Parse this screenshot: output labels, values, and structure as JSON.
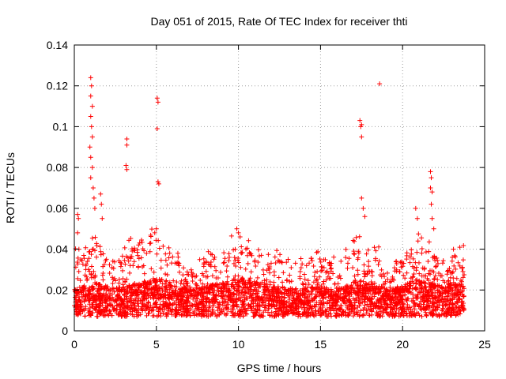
{
  "chart_data": {
    "type": "scatter",
    "title": "Day 051 of 2015, Rate Of TEC Index for receiver thti",
    "xlabel": "GPS time / hours",
    "ylabel": "ROTI / TECUs",
    "xlim": [
      0,
      25
    ],
    "ylim": [
      0,
      0.14
    ],
    "xticks": [
      0,
      5,
      10,
      15,
      20,
      25
    ],
    "xtick_labels": [
      "0",
      "5",
      "10",
      "15",
      "20",
      "25"
    ],
    "yticks": [
      0,
      0.02,
      0.04,
      0.06,
      0.08,
      0.1,
      0.12,
      0.14
    ],
    "ytick_labels": [
      "0",
      "0.02",
      "0.04",
      "0.06",
      "0.08",
      "0.1",
      "0.12",
      "0.14"
    ],
    "grid": true,
    "marker": "plus",
    "color": "#ff0000",
    "series": [
      {
        "name": "ROTI",
        "notable_points": [
          [
            1.0,
            0.124
          ],
          [
            1.05,
            0.12
          ],
          [
            1.0,
            0.115
          ],
          [
            1.1,
            0.11
          ],
          [
            1.0,
            0.105
          ],
          [
            1.05,
            0.1
          ],
          [
            1.1,
            0.095
          ],
          [
            0.95,
            0.09
          ],
          [
            1.0,
            0.085
          ],
          [
            1.1,
            0.08
          ],
          [
            1.0,
            0.075
          ],
          [
            1.15,
            0.07
          ],
          [
            1.2,
            0.065
          ],
          [
            1.25,
            0.06
          ],
          [
            1.6,
            0.067
          ],
          [
            1.65,
            0.062
          ],
          [
            1.7,
            0.055
          ],
          [
            0.2,
            0.057
          ],
          [
            0.25,
            0.055
          ],
          [
            0.2,
            0.048
          ],
          [
            3.2,
            0.094
          ],
          [
            3.2,
            0.091
          ],
          [
            3.15,
            0.081
          ],
          [
            3.2,
            0.079
          ],
          [
            5.05,
            0.114
          ],
          [
            5.1,
            0.112
          ],
          [
            5.05,
            0.099
          ],
          [
            5.1,
            0.073
          ],
          [
            5.15,
            0.072
          ],
          [
            5.0,
            0.05
          ],
          [
            4.9,
            0.048
          ],
          [
            9.9,
            0.05
          ],
          [
            10.0,
            0.048
          ],
          [
            10.1,
            0.046
          ],
          [
            17.4,
            0.103
          ],
          [
            17.5,
            0.101
          ],
          [
            17.45,
            0.1
          ],
          [
            17.5,
            0.095
          ],
          [
            17.5,
            0.065
          ],
          [
            17.6,
            0.06
          ],
          [
            17.7,
            0.056
          ],
          [
            18.6,
            0.121
          ],
          [
            20.8,
            0.06
          ],
          [
            20.9,
            0.055
          ],
          [
            21.7,
            0.078
          ],
          [
            21.75,
            0.075
          ],
          [
            21.7,
            0.07
          ],
          [
            21.8,
            0.068
          ],
          [
            21.75,
            0.062
          ],
          [
            21.8,
            0.055
          ],
          [
            21.9,
            0.05
          ]
        ],
        "base_envelope": [
          [
            0,
            0.012,
            0.038
          ],
          [
            0.5,
            0.014,
            0.042
          ],
          [
            1,
            0.015,
            0.045
          ],
          [
            1.5,
            0.015,
            0.044
          ],
          [
            2,
            0.014,
            0.04
          ],
          [
            2.5,
            0.013,
            0.038
          ],
          [
            3,
            0.014,
            0.042
          ],
          [
            3.5,
            0.015,
            0.046
          ],
          [
            4,
            0.016,
            0.044
          ],
          [
            4.5,
            0.017,
            0.048
          ],
          [
            5,
            0.018,
            0.05
          ],
          [
            5.5,
            0.017,
            0.046
          ],
          [
            6,
            0.015,
            0.04
          ],
          [
            6.5,
            0.013,
            0.036
          ],
          [
            7,
            0.012,
            0.033
          ],
          [
            7.5,
            0.013,
            0.035
          ],
          [
            8,
            0.014,
            0.038
          ],
          [
            8.5,
            0.015,
            0.04
          ],
          [
            9,
            0.016,
            0.043
          ],
          [
            9.5,
            0.018,
            0.046
          ],
          [
            10,
            0.019,
            0.05
          ],
          [
            10.5,
            0.017,
            0.045
          ],
          [
            11,
            0.016,
            0.04
          ],
          [
            11.5,
            0.015,
            0.037
          ],
          [
            12,
            0.014,
            0.036
          ],
          [
            12.5,
            0.014,
            0.04
          ],
          [
            13,
            0.013,
            0.038
          ],
          [
            13.5,
            0.013,
            0.038
          ],
          [
            14,
            0.013,
            0.036
          ],
          [
            14.5,
            0.014,
            0.04
          ],
          [
            15,
            0.014,
            0.042
          ],
          [
            15.5,
            0.013,
            0.038
          ],
          [
            16,
            0.013,
            0.036
          ],
          [
            16.5,
            0.014,
            0.04
          ],
          [
            17,
            0.016,
            0.043
          ],
          [
            17.5,
            0.017,
            0.045
          ],
          [
            18,
            0.015,
            0.042
          ],
          [
            18.5,
            0.014,
            0.04
          ],
          [
            19,
            0.013,
            0.034
          ],
          [
            19.5,
            0.013,
            0.033
          ],
          [
            20,
            0.014,
            0.036
          ],
          [
            20.5,
            0.016,
            0.042
          ],
          [
            21,
            0.017,
            0.046
          ],
          [
            21.5,
            0.016,
            0.044
          ],
          [
            22,
            0.015,
            0.04
          ],
          [
            22.5,
            0.014,
            0.036
          ],
          [
            23,
            0.015,
            0.04
          ],
          [
            23.5,
            0.015,
            0.042
          ],
          [
            23.75,
            0.015,
            0.04
          ]
        ]
      }
    ]
  }
}
